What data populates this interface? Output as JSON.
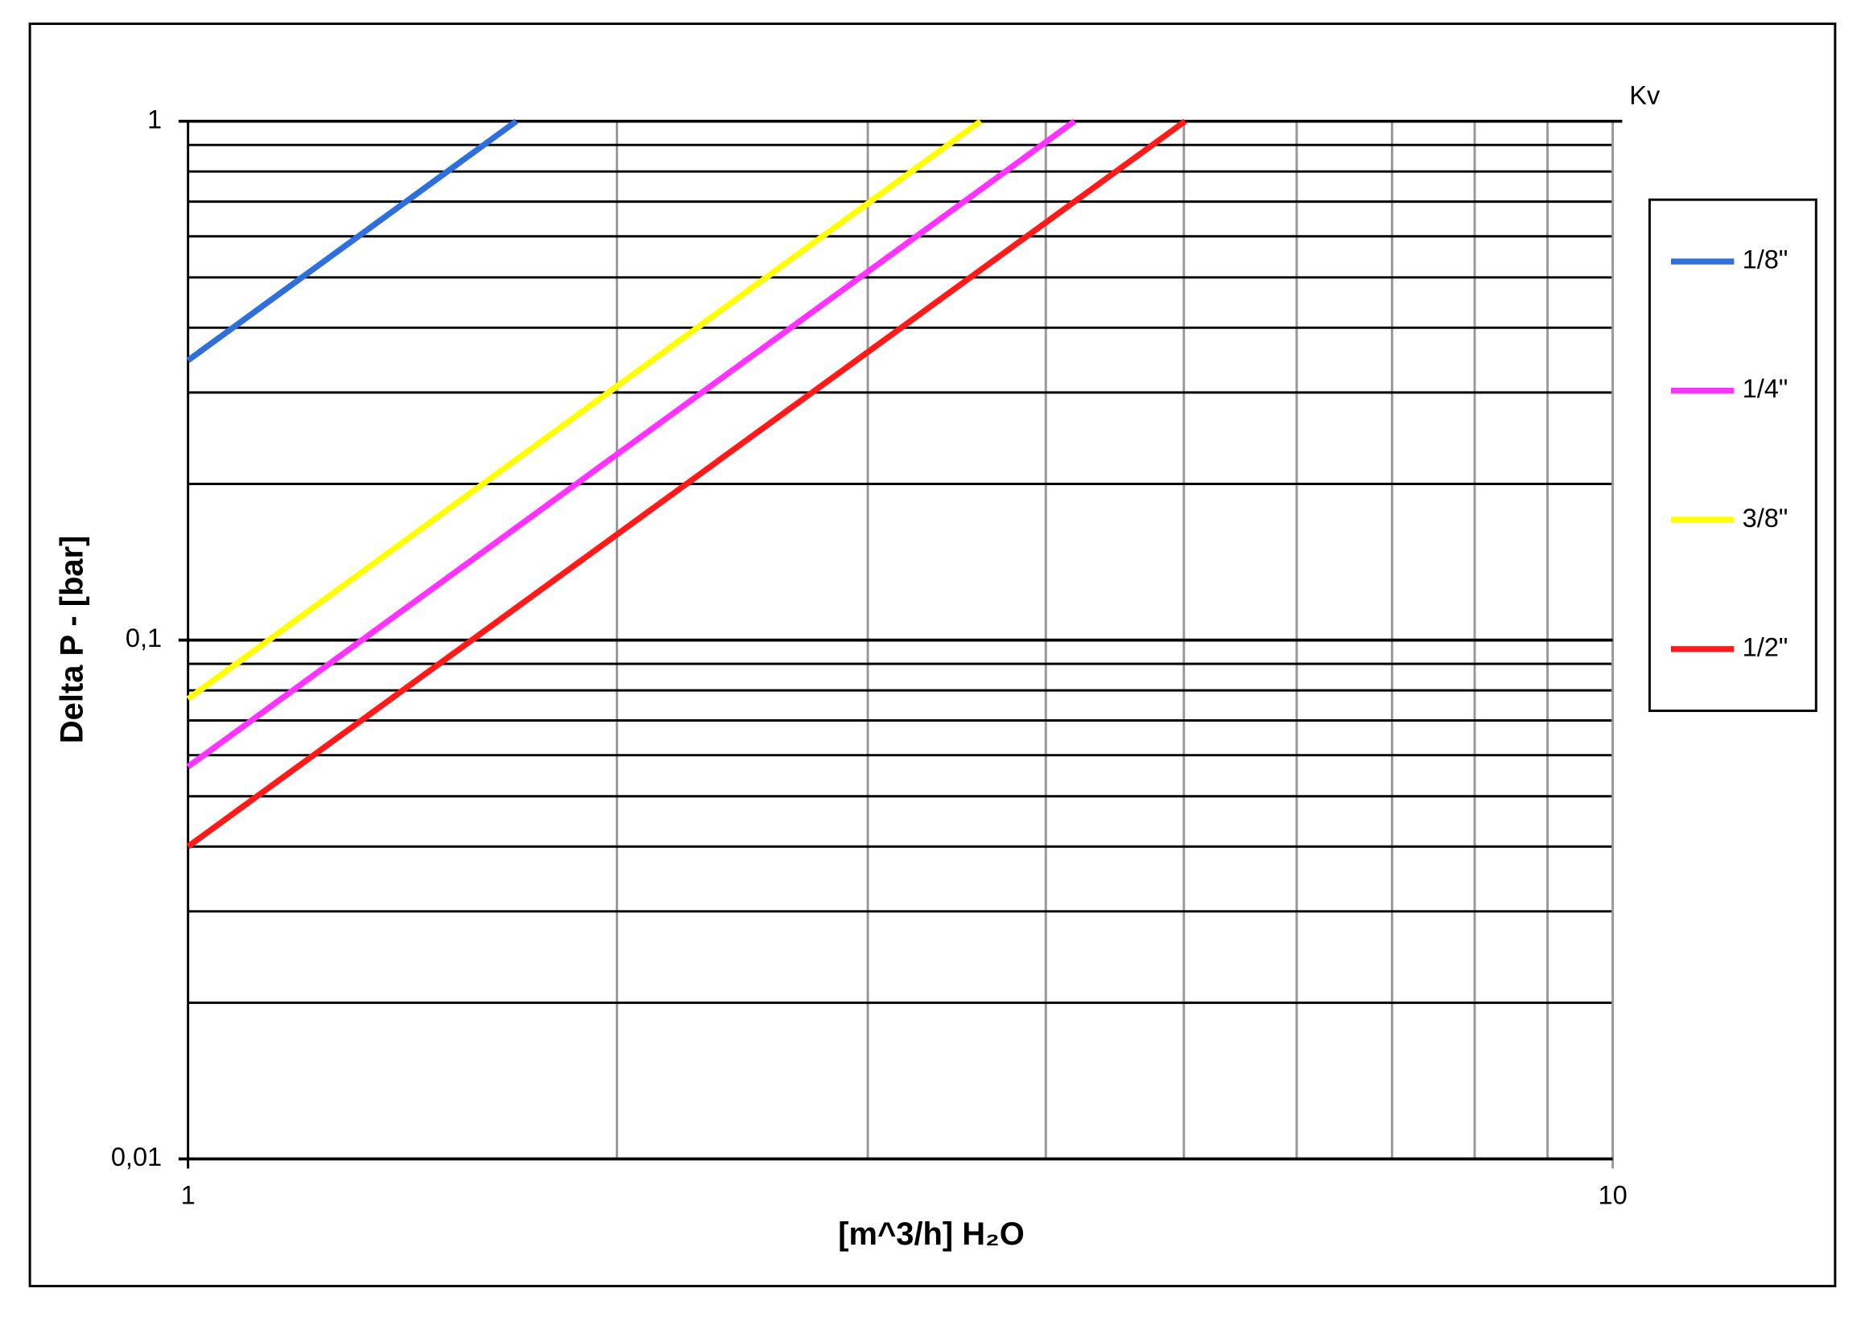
{
  "chart_data": {
    "type": "line",
    "log_x": true,
    "log_y": true,
    "grid": true,
    "x_label": "[m^3/h] H₂O",
    "y_label": "Delta P - [bar]",
    "legend_title": "Kv",
    "legend": "right",
    "xlim": [
      1,
      10
    ],
    "xticks": [
      1,
      10
    ],
    "xminor": [
      2,
      3,
      4,
      5,
      6,
      7,
      8,
      9
    ],
    "ylim": [
      0.01,
      1
    ],
    "yticks": [
      {
        "value": 0.01,
        "label": "0,01"
      },
      {
        "value": 0.1,
        "label": "0,1"
      },
      1
    ],
    "yminor": [
      0.02,
      0.03,
      0.04,
      0.05,
      0.06,
      0.07,
      0.08,
      0.09,
      0.2,
      0.3,
      0.4,
      0.5,
      0.6,
      0.7,
      0.8,
      0.9
    ],
    "series": [
      {
        "name": "1/8\"",
        "color": "#2e6fdb",
        "x": [
          1,
          1.7
        ],
        "values": [
          0.346,
          1
        ]
      },
      {
        "name": "1/4\"",
        "color": "#ff33ff",
        "x": [
          1,
          4.19
        ],
        "values": [
          0.057,
          1
        ]
      },
      {
        "name": "3/8\"",
        "color": "#ffff00",
        "x": [
          1,
          3.6
        ],
        "values": [
          0.077,
          1
        ]
      },
      {
        "name": "1/2\"",
        "color": "#ff1a1a",
        "x": [
          1,
          5.01
        ],
        "values": [
          0.04,
          1
        ]
      }
    ]
  }
}
